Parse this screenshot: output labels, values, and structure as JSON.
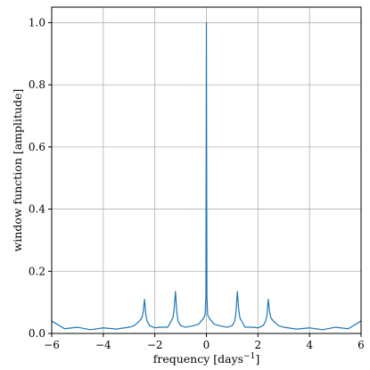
{
  "chart_data": {
    "type": "line",
    "title": "",
    "xlabel": "frequency [days",
    "xlabel_sup": "−1",
    "xlabel_suffix": "]",
    "ylabel": "window function [amplitude]",
    "xlim": [
      -6,
      6
    ],
    "ylim": [
      0,
      1.05
    ],
    "grid": true,
    "xticks": [
      -6,
      -4,
      -2,
      0,
      2,
      4,
      6
    ],
    "xtick_labels": [
      "−6",
      "−4",
      "−2",
      "0",
      "2",
      "4",
      "6"
    ],
    "yticks": [
      0,
      0.2,
      0.4,
      0.6,
      0.8,
      1.0
    ],
    "ytick_labels": [
      "0.0",
      "0.2",
      "0.4",
      "0.6",
      "0.8",
      "1.0"
    ],
    "line_color": "#1f77b4",
    "series": [
      {
        "x": [
          -6,
          -5.5,
          -5,
          -4.5,
          -4,
          -3.5,
          -3,
          -2.8,
          -2.6,
          -2.5,
          -2.45,
          -2.4,
          -2.35,
          -2.3,
          -2.2,
          -2.0,
          -1.8,
          -1.5,
          -1.3,
          -1.25,
          -1.2,
          -1.15,
          -1.1,
          -1.0,
          -0.8,
          -0.5,
          -0.3,
          -0.2,
          -0.1,
          -0.05,
          -0.02,
          0,
          0.02,
          0.05,
          0.1,
          0.2,
          0.3,
          0.5,
          0.8,
          1.0,
          1.1,
          1.15,
          1.2,
          1.25,
          1.3,
          1.5,
          1.8,
          2.0,
          2.2,
          2.3,
          2.35,
          2.4,
          2.45,
          2.5,
          2.6,
          2.8,
          3.0,
          3.5,
          4.0,
          4.5,
          5.0,
          5.5,
          6.0
        ],
        "y": [
          0.04,
          0.015,
          0.02,
          0.012,
          0.018,
          0.014,
          0.02,
          0.025,
          0.04,
          0.05,
          0.07,
          0.11,
          0.06,
          0.04,
          0.025,
          0.018,
          0.02,
          0.02,
          0.05,
          0.08,
          0.135,
          0.07,
          0.04,
          0.025,
          0.02,
          0.025,
          0.03,
          0.04,
          0.05,
          0.06,
          0.12,
          1.0,
          0.12,
          0.06,
          0.05,
          0.04,
          0.03,
          0.025,
          0.02,
          0.025,
          0.04,
          0.07,
          0.135,
          0.08,
          0.05,
          0.02,
          0.02,
          0.018,
          0.025,
          0.04,
          0.06,
          0.11,
          0.07,
          0.05,
          0.04,
          0.025,
          0.02,
          0.014,
          0.018,
          0.012,
          0.02,
          0.015,
          0.04
        ]
      }
    ]
  }
}
